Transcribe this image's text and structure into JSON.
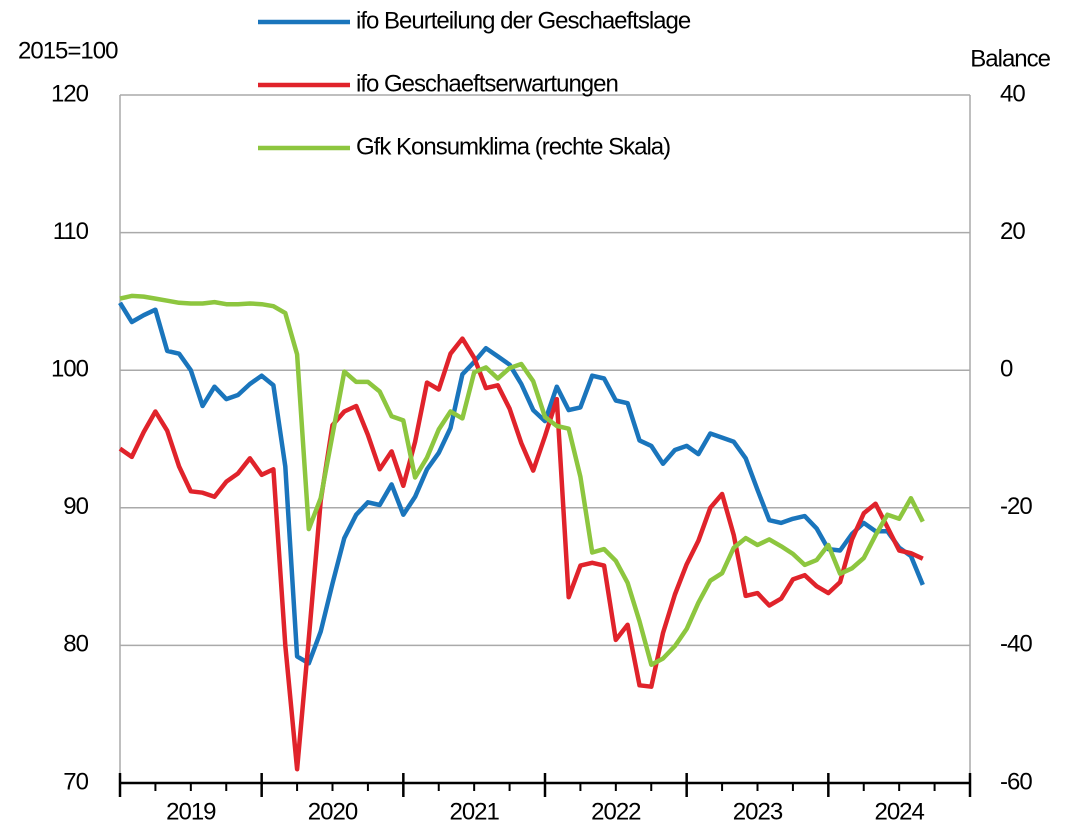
{
  "chart_data": {
    "type": "line",
    "ylabel": "2015=100",
    "y2label": "Balance",
    "xlim": [
      2019,
      2025
    ],
    "xticks": [
      2019,
      2020,
      2021,
      2022,
      2023,
      2024,
      2025
    ],
    "year_labels": [
      "2019",
      "2020",
      "2021",
      "2022",
      "2023",
      "2024"
    ],
    "ylim": [
      70,
      120
    ],
    "yticks": [
      70,
      80,
      90,
      100,
      110,
      120
    ],
    "y2lim": [
      -60,
      40
    ],
    "y2ticks": [
      -60,
      -40,
      -20,
      0,
      20,
      40
    ],
    "grid": true,
    "legend": "top",
    "x": [
      2019.0,
      2019.083,
      2019.167,
      2019.25,
      2019.333,
      2019.417,
      2019.5,
      2019.583,
      2019.667,
      2019.75,
      2019.833,
      2019.917,
      2020.0,
      2020.083,
      2020.167,
      2020.25,
      2020.333,
      2020.417,
      2020.5,
      2020.583,
      2020.667,
      2020.75,
      2020.833,
      2020.917,
      2021.0,
      2021.083,
      2021.167,
      2021.25,
      2021.333,
      2021.417,
      2021.5,
      2021.583,
      2021.667,
      2021.75,
      2021.833,
      2021.917,
      2022.0,
      2022.083,
      2022.167,
      2022.25,
      2022.333,
      2022.417,
      2022.5,
      2022.583,
      2022.667,
      2022.75,
      2022.833,
      2022.917,
      2023.0,
      2023.083,
      2023.167,
      2023.25,
      2023.333,
      2023.417,
      2023.5,
      2023.583,
      2023.667,
      2023.75,
      2023.833,
      2023.917,
      2024.0,
      2024.083,
      2024.167,
      2024.25,
      2024.333,
      2024.417,
      2024.5,
      2024.583,
      2024.667
    ],
    "series": [
      {
        "name": "ifo Beurteilung der Geschaeftslage",
        "color": "#1a75bc",
        "values": [
          104.9,
          103.5,
          104.0,
          104.4,
          101.4,
          101.2,
          100.0,
          97.4,
          98.8,
          97.9,
          98.2,
          99.0,
          99.6,
          98.9,
          93.0,
          79.2,
          78.7,
          81.0,
          84.5,
          87.8,
          89.5,
          90.4,
          90.2,
          91.7,
          89.5,
          90.8,
          92.8,
          94.0,
          95.8,
          99.7,
          100.6,
          101.6,
          101.0,
          100.4,
          99.0,
          97.1,
          96.3,
          98.8,
          97.1,
          97.3,
          99.6,
          99.4,
          97.8,
          97.6,
          94.9,
          94.5,
          93.2,
          94.2,
          94.5,
          93.9,
          95.4,
          95.1,
          94.8,
          93.6,
          91.3,
          89.1,
          88.9,
          89.2,
          89.4,
          88.5,
          87.0,
          86.9,
          88.1,
          88.9,
          88.3,
          88.3,
          87.1,
          86.5,
          84.4
        ]
      },
      {
        "name": "ifo Geschaeftserwartungen",
        "color": "#e0232b",
        "values": [
          94.3,
          93.7,
          95.5,
          97.0,
          95.6,
          93.0,
          91.2,
          91.1,
          90.8,
          91.9,
          92.5,
          93.6,
          92.4,
          92.8,
          80.0,
          71.0,
          80.5,
          90.5,
          96.0,
          97.0,
          97.4,
          95.3,
          92.8,
          94.1,
          91.6,
          94.8,
          99.1,
          98.6,
          101.2,
          102.3,
          100.9,
          98.7,
          98.9,
          97.2,
          94.7,
          92.7,
          95.2,
          97.9,
          83.5,
          85.8,
          86.0,
          85.8,
          80.4,
          81.5,
          77.1,
          77.0,
          80.9,
          83.7,
          85.9,
          87.6,
          90.0,
          91.0,
          88.0,
          83.6,
          83.8,
          82.9,
          83.4,
          84.8,
          85.1,
          84.3,
          83.8,
          84.6,
          87.7,
          89.6,
          90.3,
          88.6,
          86.9,
          86.7,
          86.3
        ]
      },
      {
        "name": "Gfk Konsumklima (rechte Skala)",
        "color": "#8dc63f",
        "axis": "y2",
        "values": [
          10.4,
          10.8,
          10.7,
          10.4,
          10.1,
          9.8,
          9.7,
          9.7,
          9.9,
          9.6,
          9.6,
          9.7,
          9.6,
          9.3,
          8.3,
          2.3,
          -23.1,
          -18.6,
          -9.4,
          -0.2,
          -1.7,
          -1.7,
          -3.1,
          -6.7,
          -7.3,
          -15.6,
          -12.7,
          -8.6,
          -6.0,
          -7.0,
          -0.3,
          0.4,
          -1.2,
          0.3,
          0.9,
          -1.6,
          -6.8,
          -8.1,
          -8.5,
          -15.5,
          -26.5,
          -26.0,
          -27.7,
          -30.9,
          -36.5,
          -42.8,
          -41.9,
          -40.1,
          -37.6,
          -33.8,
          -30.6,
          -29.5,
          -25.8,
          -24.4,
          -25.4,
          -24.6,
          -25.6,
          -26.7,
          -28.3,
          -27.6,
          -25.4,
          -29.6,
          -28.8,
          -27.3,
          -24.0,
          -21.0,
          -21.6,
          -18.6,
          -22.0
        ]
      }
    ]
  }
}
